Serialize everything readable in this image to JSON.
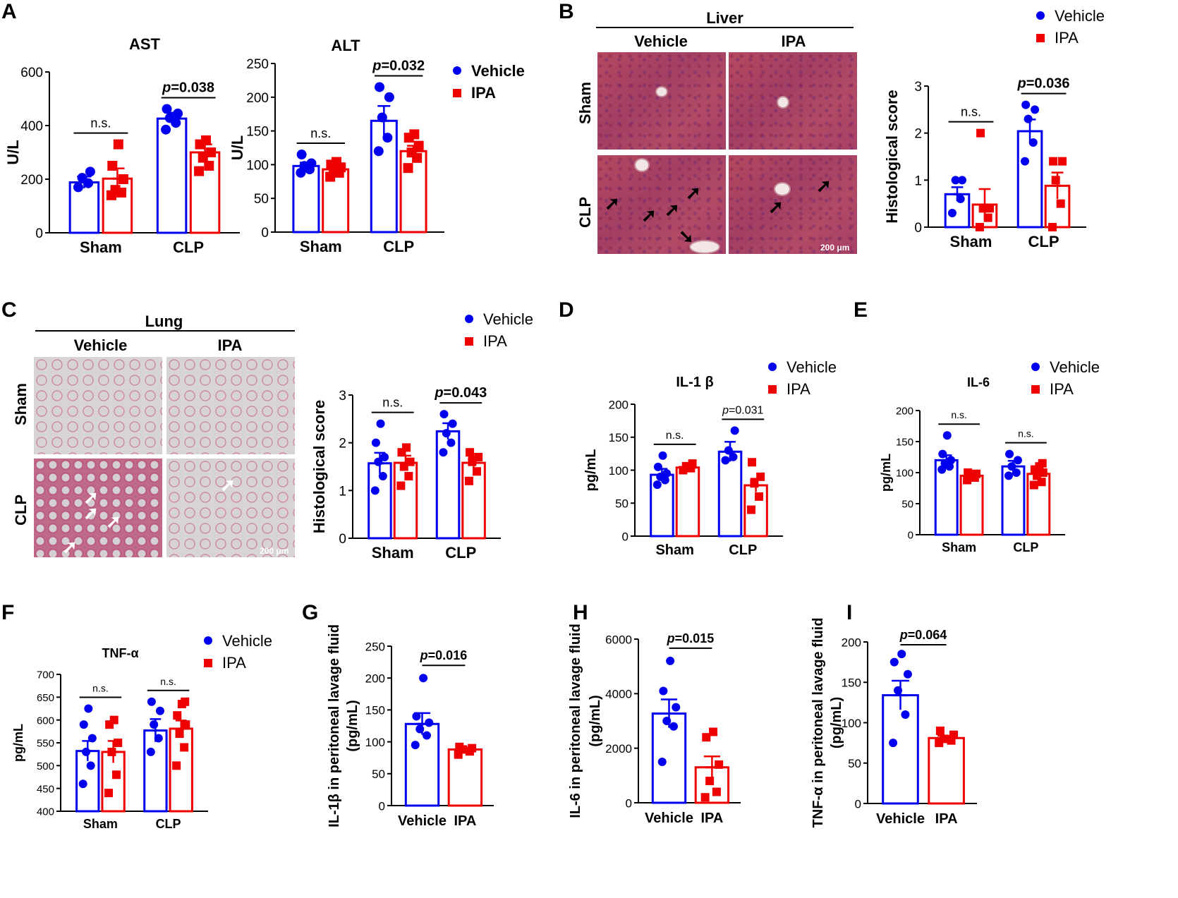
{
  "panels": {
    "A": "A",
    "B": "B",
    "C": "C",
    "D": "D",
    "E": "E",
    "F": "F",
    "G": "G",
    "H": "H",
    "I": "I"
  },
  "colors": {
    "vehicle": "#0000ee",
    "ipa": "#ee0000"
  },
  "legend": {
    "vehicle": "Vehicle",
    "ipa": "IPA"
  },
  "micro_liver": {
    "title": "Liver",
    "col_vehicle": "Vehicle",
    "col_ipa": "IPA",
    "row_sham": "Sham",
    "row_clp": "CLP",
    "scale": "200 μm"
  },
  "micro_lung": {
    "title": "Lung",
    "col_vehicle": "Vehicle",
    "col_ipa": "IPA",
    "row_sham": "Sham",
    "row_clp": "CLP",
    "scale": "200 μm"
  },
  "chart_data": [
    {
      "id": "ast",
      "type": "bar",
      "title": "AST",
      "ylabel": "U/L",
      "xlabel": "",
      "ylim": [
        0,
        600
      ],
      "yticks": [
        0,
        200,
        400,
        600
      ],
      "categories": [
        "Sham",
        "CLP"
      ],
      "series": [
        {
          "name": "Vehicle",
          "values": [
            188,
            426
          ],
          "sem": [
            22,
            22
          ],
          "points": [
            [
              170,
              185,
              205,
              228
            ],
            [
              385,
              410,
              428,
              445,
              462
            ]
          ]
        },
        {
          "name": "IPA",
          "values": [
            202,
            300
          ],
          "sem": [
            38,
            30
          ],
          "points": [
            [
              140,
              150,
              160,
              200,
              250,
              330
            ],
            [
              230,
              250,
              280,
              300,
              330,
              345
            ]
          ]
        }
      ],
      "annotations": [
        {
          "group": 0,
          "text": "n.s."
        },
        {
          "group": 1,
          "text": "p=0.038"
        }
      ]
    },
    {
      "id": "alt",
      "type": "bar",
      "title": "ALT",
      "ylabel": "U/L",
      "xlabel": "",
      "ylim": [
        0,
        250
      ],
      "yticks": [
        0,
        50,
        100,
        150,
        200,
        250
      ],
      "categories": [
        "Sham",
        "CLP"
      ],
      "series": [
        {
          "name": "Vehicle",
          "values": [
            98,
            165
          ],
          "sem": [
            5,
            22
          ],
          "points": [
            [
              88,
              93,
              98,
              102,
              115
            ],
            [
              120,
              140,
              170,
              200,
              215
            ]
          ]
        },
        {
          "name": "IPA",
          "values": [
            93,
            120
          ],
          "sem": [
            6,
            8
          ],
          "points": [
            [
              82,
              88,
              92,
              96,
              100,
              104
            ],
            [
              95,
              110,
              118,
              128,
              140,
              145
            ]
          ]
        }
      ],
      "annotations": [
        {
          "group": 0,
          "text": "n.s."
        },
        {
          "group": 1,
          "text": "p=0.032"
        }
      ]
    },
    {
      "id": "liver_hist",
      "type": "bar",
      "title": "",
      "ylabel": "Histological score",
      "xlabel": "",
      "ylim": [
        0,
        3
      ],
      "yticks": [
        0,
        1,
        2,
        3
      ],
      "categories": [
        "Sham",
        "CLP"
      ],
      "series": [
        {
          "name": "Vehicle",
          "values": [
            0.7,
            2.04
          ],
          "sem": [
            0.15,
            0.25
          ],
          "points": [
            [
              0.3,
              0.6,
              1.0,
              1.0
            ],
            [
              1.4,
              1.8,
              2.3,
              2.5,
              2.6
            ]
          ]
        },
        {
          "name": "IPA",
          "values": [
            0.48,
            0.88
          ],
          "sem": [
            0.33,
            0.28
          ],
          "points": [
            [
              0.0,
              0.2,
              0.4,
              0.4,
              2.0
            ],
            [
              0.0,
              0.5,
              1.0,
              1.4,
              1.4
            ]
          ]
        }
      ],
      "annotations": [
        {
          "group": 0,
          "text": "n.s."
        },
        {
          "group": 1,
          "text": "p=0.036"
        }
      ]
    },
    {
      "id": "lung_hist",
      "type": "bar",
      "title": "",
      "ylabel": "Histological score",
      "xlabel": "",
      "ylim": [
        0,
        3
      ],
      "yticks": [
        0,
        1,
        2,
        3
      ],
      "categories": [
        "Sham",
        "CLP"
      ],
      "series": [
        {
          "name": "Vehicle",
          "values": [
            1.57,
            2.24
          ],
          "sem": [
            0.22,
            0.17
          ],
          "points": [
            [
              1.0,
              1.3,
              1.6,
              1.7,
              2.0,
              2.4
            ],
            [
              1.8,
              2.0,
              2.2,
              2.4,
              2.6
            ]
          ]
        },
        {
          "name": "IPA",
          "values": [
            1.58,
            1.58
          ],
          "sem": [
            0.15,
            0.12
          ],
          "points": [
            [
              1.1,
              1.3,
              1.5,
              1.6,
              1.8,
              1.9
            ],
            [
              1.2,
              1.4,
              1.6,
              1.7,
              1.8
            ]
          ]
        }
      ],
      "annotations": [
        {
          "group": 0,
          "text": "n.s."
        },
        {
          "group": 1,
          "text": "p=0.043"
        }
      ]
    },
    {
      "id": "il1b",
      "type": "bar",
      "title": "IL-1 β",
      "ylabel": "pg/mL",
      "xlabel": "",
      "ylim": [
        0,
        200
      ],
      "yticks": [
        0,
        50,
        100,
        150,
        200
      ],
      "categories": [
        "Sham",
        "CLP"
      ],
      "series": [
        {
          "name": "Vehicle",
          "values": [
            93,
            128
          ],
          "sem": [
            9,
            15
          ],
          "points": [
            [
              78,
              85,
              90,
              95,
              105,
              122
            ],
            [
              115,
              120,
              130,
              160
            ]
          ]
        },
        {
          "name": "IPA",
          "values": [
            104,
            77
          ],
          "sem": [
            4,
            10
          ],
          "points": [
            [
              100,
              103,
              106,
              110
            ],
            [
              40,
              60,
              80,
              90,
              112
            ]
          ]
        }
      ],
      "annotations": [
        {
          "group": 0,
          "text": "n.s."
        },
        {
          "group": 1,
          "text": "p=0.031"
        }
      ]
    },
    {
      "id": "il6",
      "type": "bar",
      "title": "IL-6",
      "ylabel": "pg/mL",
      "xlabel": "",
      "ylim": [
        0,
        200
      ],
      "yticks": [
        0,
        50,
        100,
        150,
        200
      ],
      "categories": [
        "Sham",
        "CLP"
      ],
      "series": [
        {
          "name": "Vehicle",
          "values": [
            120,
            110
          ],
          "sem": [
            8,
            9
          ],
          "points": [
            [
              105,
              110,
              115,
              120,
              130,
              160
            ],
            [
              95,
              100,
              110,
              120,
              130
            ]
          ]
        },
        {
          "name": "IPA",
          "values": [
            95,
            98
          ],
          "sem": [
            3,
            6
          ],
          "points": [
            [
              88,
              92,
              95,
              98,
              100
            ],
            [
              80,
              85,
              95,
              100,
              105,
              110,
              115
            ]
          ]
        }
      ],
      "annotations": [
        {
          "group": 0,
          "text": "n.s."
        },
        {
          "group": 1,
          "text": "n.s."
        }
      ]
    },
    {
      "id": "tnfa",
      "type": "bar",
      "title": "TNF-α",
      "ylabel": "pg/mL",
      "xlabel": "",
      "ylim": [
        400,
        700
      ],
      "yticks": [
        400,
        450,
        500,
        550,
        600,
        650,
        700
      ],
      "categories": [
        "Sham",
        "CLP"
      ],
      "series": [
        {
          "name": "Vehicle",
          "values": [
            532,
            577
          ],
          "sem": [
            22,
            25
          ],
          "points": [
            [
              460,
              500,
              530,
              560,
              590,
              625
            ],
            [
              530,
              560,
              590,
              620,
              640
            ]
          ]
        },
        {
          "name": "IPA",
          "values": [
            530,
            581
          ],
          "sem": [
            24,
            18
          ],
          "points": [
            [
              440,
              480,
              530,
              550,
              590,
              600
            ],
            [
              500,
              540,
              570,
              590,
              610,
              635,
              640
            ]
          ]
        }
      ],
      "annotations": [
        {
          "group": 0,
          "text": "n.s."
        },
        {
          "group": 1,
          "text": "n.s."
        }
      ]
    },
    {
      "id": "il1b_lavage",
      "type": "bar",
      "title": "",
      "ylabel": "IL-1β in peritoneal lavage fluid (pg/mL)",
      "xlabel": "",
      "ylim": [
        0,
        250
      ],
      "yticks": [
        0,
        50,
        100,
        150,
        200,
        250
      ],
      "categories": [
        "Vehicle",
        "IPA"
      ],
      "series": [
        {
          "name": "Vehicle",
          "values": [
            128,
            null
          ],
          "sem": [
            17,
            null
          ],
          "points": [
            [
              95,
              110,
              120,
              130,
              140,
              200
            ]
          ]
        },
        {
          "name": "IPA",
          "values": [
            null,
            88
          ],
          "sem": [
            null,
            3
          ],
          "points": [
            [],
            [
              80,
              85,
              88,
              90,
              92
            ]
          ]
        }
      ],
      "annotations": [
        {
          "group": -1,
          "text": "p=0.016"
        }
      ]
    },
    {
      "id": "il6_lavage",
      "type": "bar",
      "title": "",
      "ylabel": "IL-6 in peritoneal lavage fluid (pg/mL)",
      "xlabel": "",
      "ylim": [
        0,
        6000
      ],
      "yticks": [
        0,
        2000,
        4000,
        6000
      ],
      "categories": [
        "Vehicle",
        "IPA"
      ],
      "series": [
        {
          "name": "Vehicle",
          "values": [
            3270,
            null
          ],
          "sem": [
            520,
            null
          ],
          "points": [
            [
              1500,
              2800,
              3000,
              3500,
              4100,
              5200
            ]
          ]
        },
        {
          "name": "IPA",
          "values": [
            null,
            1300
          ],
          "sem": [
            null,
            400
          ],
          "points": [
            [],
            [
              200,
              400,
              800,
              1400,
              2400,
              2600
            ]
          ]
        }
      ],
      "annotations": [
        {
          "group": -1,
          "text": "p=0.015"
        }
      ]
    },
    {
      "id": "tnfa_lavage",
      "type": "bar",
      "title": "",
      "ylabel": "TNF-α in peritoneal lavage fluid (pg/mL)",
      "xlabel": "",
      "ylim": [
        0,
        200
      ],
      "yticks": [
        0,
        50,
        100,
        150,
        200
      ],
      "categories": [
        "Vehicle",
        "IPA"
      ],
      "series": [
        {
          "name": "Vehicle",
          "values": [
            134,
            null
          ],
          "sem": [
            18,
            null
          ],
          "points": [
            [
              75,
              110,
              140,
              160,
              175,
              185
            ]
          ]
        },
        {
          "name": "IPA",
          "values": [
            null,
            81
          ],
          "sem": [
            null,
            3
          ],
          "points": [
            [],
            [
              75,
              78,
              80,
              85,
              90
            ]
          ]
        }
      ],
      "annotations": [
        {
          "group": -1,
          "text": "p=0.064"
        }
      ]
    }
  ]
}
